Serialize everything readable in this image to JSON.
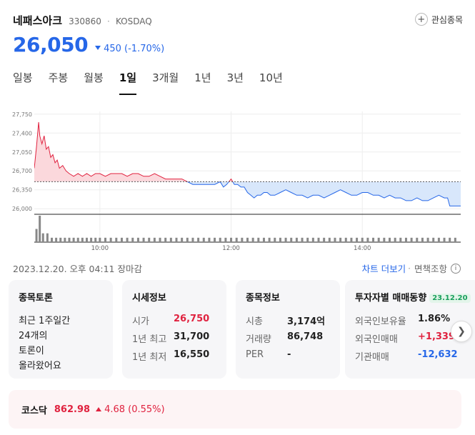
{
  "header": {
    "name": "네패스아크",
    "code": "330860",
    "separator": "·",
    "market": "KOSDAQ",
    "watch_label": "관심종목",
    "watch_icon": "plus-circle-icon"
  },
  "price": {
    "current": "26,050",
    "change": "450",
    "change_pct": "(-1.70%)",
    "direction": "down",
    "color": "#2667e8"
  },
  "tabs": [
    {
      "label": "일봉",
      "active": false
    },
    {
      "label": "주봉",
      "active": false
    },
    {
      "label": "월봉",
      "active": false
    },
    {
      "label": "1일",
      "active": true
    },
    {
      "label": "3개월",
      "active": false
    },
    {
      "label": "1년",
      "active": false
    },
    {
      "label": "3년",
      "active": false
    },
    {
      "label": "10년",
      "active": false
    }
  ],
  "chart_data": {
    "type": "area",
    "baseline": 26500,
    "ylim": [
      25950,
      27800
    ],
    "y_ticks": [
      27750,
      27400,
      27050,
      26700,
      26350,
      26000
    ],
    "y_tick_labels": [
      "27,750",
      "27,400",
      "27,050",
      "26,700",
      "26,350",
      "26,000"
    ],
    "x_range": [
      540,
      930
    ],
    "x_ticks": [
      600,
      720,
      840
    ],
    "x_tick_labels": [
      "10:00",
      "12:00",
      "14:00"
    ],
    "up_color": "#e0223f",
    "down_color": "#2667e8",
    "price_series": [
      [
        540,
        26750
      ],
      [
        542,
        27150
      ],
      [
        544,
        27600
      ],
      [
        545,
        27350
      ],
      [
        547,
        27200
      ],
      [
        549,
        27350
      ],
      [
        551,
        27100
      ],
      [
        553,
        27150
      ],
      [
        555,
        26950
      ],
      [
        557,
        27000
      ],
      [
        559,
        26850
      ],
      [
        561,
        26900
      ],
      [
        563,
        26750
      ],
      [
        566,
        26800
      ],
      [
        569,
        26700
      ],
      [
        572,
        26650
      ],
      [
        576,
        26600
      ],
      [
        580,
        26650
      ],
      [
        584,
        26600
      ],
      [
        588,
        26650
      ],
      [
        592,
        26600
      ],
      [
        596,
        26650
      ],
      [
        600,
        26650
      ],
      [
        605,
        26600
      ],
      [
        610,
        26650
      ],
      [
        615,
        26650
      ],
      [
        620,
        26650
      ],
      [
        625,
        26600
      ],
      [
        630,
        26650
      ],
      [
        635,
        26650
      ],
      [
        640,
        26600
      ],
      [
        645,
        26600
      ],
      [
        650,
        26650
      ],
      [
        655,
        26600
      ],
      [
        660,
        26550
      ],
      [
        665,
        26550
      ],
      [
        670,
        26550
      ],
      [
        675,
        26550
      ],
      [
        680,
        26500
      ],
      [
        685,
        26450
      ],
      [
        690,
        26450
      ],
      [
        695,
        26450
      ],
      [
        700,
        26450
      ],
      [
        705,
        26450
      ],
      [
        710,
        26500
      ],
      [
        713,
        26400
      ],
      [
        716,
        26450
      ],
      [
        720,
        26550
      ],
      [
        723,
        26450
      ],
      [
        726,
        26450
      ],
      [
        729,
        26400
      ],
      [
        732,
        26400
      ],
      [
        735,
        26300
      ],
      [
        738,
        26250
      ],
      [
        741,
        26200
      ],
      [
        744,
        26250
      ],
      [
        747,
        26250
      ],
      [
        750,
        26300
      ],
      [
        753,
        26300
      ],
      [
        756,
        26250
      ],
      [
        760,
        26250
      ],
      [
        765,
        26300
      ],
      [
        770,
        26350
      ],
      [
        775,
        26300
      ],
      [
        780,
        26250
      ],
      [
        785,
        26250
      ],
      [
        790,
        26200
      ],
      [
        795,
        26250
      ],
      [
        800,
        26250
      ],
      [
        805,
        26200
      ],
      [
        810,
        26250
      ],
      [
        815,
        26300
      ],
      [
        820,
        26350
      ],
      [
        825,
        26300
      ],
      [
        830,
        26250
      ],
      [
        835,
        26250
      ],
      [
        840,
        26300
      ],
      [
        845,
        26300
      ],
      [
        850,
        26250
      ],
      [
        855,
        26250
      ],
      [
        860,
        26200
      ],
      [
        865,
        26250
      ],
      [
        870,
        26200
      ],
      [
        875,
        26200
      ],
      [
        880,
        26150
      ],
      [
        885,
        26150
      ],
      [
        890,
        26200
      ],
      [
        895,
        26150
      ],
      [
        900,
        26150
      ],
      [
        905,
        26200
      ],
      [
        910,
        26250
      ],
      [
        915,
        26200
      ],
      [
        918,
        26200
      ],
      [
        920,
        26050
      ],
      [
        925,
        26050
      ],
      [
        930,
        26050
      ]
    ],
    "volume_series": [
      [
        542,
        3
      ],
      [
        545,
        6
      ],
      [
        548,
        2
      ],
      [
        552,
        2
      ],
      [
        556,
        1
      ],
      [
        560,
        1
      ],
      [
        564,
        1
      ],
      [
        568,
        1
      ],
      [
        572,
        1
      ],
      [
        576,
        1
      ],
      [
        580,
        1
      ],
      [
        584,
        1
      ],
      [
        588,
        1
      ],
      [
        592,
        1
      ],
      [
        596,
        1
      ],
      [
        600,
        1
      ],
      [
        605,
        1
      ],
      [
        610,
        1
      ],
      [
        615,
        1
      ],
      [
        620,
        1
      ],
      [
        625,
        1
      ],
      [
        630,
        1
      ],
      [
        635,
        1
      ],
      [
        640,
        1
      ],
      [
        645,
        1
      ],
      [
        650,
        1
      ],
      [
        655,
        1
      ],
      [
        660,
        1
      ],
      [
        665,
        1
      ],
      [
        670,
        1
      ],
      [
        675,
        1
      ],
      [
        680,
        1
      ],
      [
        685,
        1
      ],
      [
        690,
        1
      ],
      [
        695,
        1
      ],
      [
        700,
        1
      ],
      [
        705,
        1
      ],
      [
        710,
        1
      ],
      [
        715,
        1
      ],
      [
        720,
        1
      ],
      [
        725,
        1
      ],
      [
        730,
        1
      ],
      [
        735,
        1
      ],
      [
        740,
        1
      ],
      [
        745,
        1
      ],
      [
        750,
        1
      ],
      [
        755,
        1
      ],
      [
        760,
        1
      ],
      [
        765,
        1
      ],
      [
        770,
        1
      ],
      [
        775,
        1
      ],
      [
        780,
        1
      ],
      [
        785,
        1
      ],
      [
        790,
        1
      ],
      [
        795,
        1
      ],
      [
        800,
        1
      ],
      [
        805,
        1
      ],
      [
        810,
        1
      ],
      [
        815,
        1
      ],
      [
        820,
        1
      ],
      [
        825,
        1
      ],
      [
        830,
        1
      ],
      [
        835,
        1
      ],
      [
        840,
        1
      ],
      [
        845,
        1
      ],
      [
        850,
        1
      ],
      [
        855,
        1
      ],
      [
        860,
        1
      ],
      [
        865,
        1
      ],
      [
        870,
        1
      ],
      [
        875,
        1
      ],
      [
        880,
        1
      ],
      [
        885,
        1
      ],
      [
        890,
        1
      ],
      [
        895,
        1
      ],
      [
        900,
        1
      ],
      [
        905,
        1
      ],
      [
        910,
        1
      ],
      [
        915,
        1
      ],
      [
        920,
        1
      ],
      [
        925,
        1
      ]
    ]
  },
  "status": {
    "timestamp": "2023.12.20. 오후 04:11 장마감",
    "chart_more": "차트 더보기",
    "separator": "·",
    "disclaimer": "면책조항",
    "info_icon": "info-icon"
  },
  "cards": {
    "discussion": {
      "title": "종목토론",
      "lines": [
        "최근 1주일간",
        "24개의",
        "토론이",
        "올라왔어요"
      ]
    },
    "market_info": {
      "title": "시세정보",
      "rows": [
        {
          "k": "시가",
          "v": "26,750",
          "color": "red"
        },
        {
          "k": "1년 최고",
          "v": "31,700",
          "color": "normal"
        },
        {
          "k": "1년 최저",
          "v": "16,550",
          "color": "normal"
        }
      ]
    },
    "stock_info": {
      "title": "종목정보",
      "rows": [
        {
          "k": "시총",
          "v": "3,174억",
          "color": "normal"
        },
        {
          "k": "거래량",
          "v": "86,748",
          "color": "normal"
        },
        {
          "k": "PER",
          "v": "-",
          "color": "normal"
        }
      ]
    },
    "investor": {
      "title": "투자자별 매매동향",
      "badge": "23.12.20",
      "rows": [
        {
          "k": "외국인보유율",
          "v": "1.86%",
          "color": "normal"
        },
        {
          "k": "외국인매매",
          "v": "+1,339",
          "color": "red"
        },
        {
          "k": "기관매매",
          "v": "-12,632",
          "color": "blue"
        }
      ]
    },
    "next_icon": "chevron-right-icon"
  },
  "index": {
    "name": "코스닥",
    "value": "862.98",
    "change": "4.68",
    "change_pct": "(0.55%)",
    "direction": "up"
  }
}
